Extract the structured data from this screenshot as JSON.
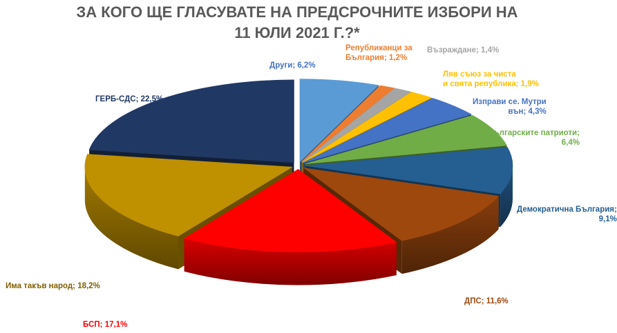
{
  "title_lines": [
    "ЗА КОГО ЩЕ ГЛАСУВАТЕ НА ПРЕДСРОЧНИТЕ ИЗБОРИ НА",
    "11 ЮЛИ 2021 Г.?*"
  ],
  "chart_data": {
    "type": "pie",
    "title": "ЗА КОГО ЩЕ ГЛАСУВАТЕ НА ПРЕДСРОЧНИТЕ ИЗБОРИ НА 11 ЮЛИ 2021 Г.?*",
    "three_d": true,
    "slices": [
      {
        "label": "Други",
        "value": 6.2,
        "display": "6,2%",
        "color": "#5b9bd5",
        "label_color": "#4472c4"
      },
      {
        "label": "Републиканци за България",
        "value": 1.2,
        "display": "1,2%",
        "color": "#ed7d31",
        "label_color": "#ed7d31"
      },
      {
        "label": "Възраждане",
        "value": 1.4,
        "display": "1,4%",
        "color": "#a5a5a5",
        "label_color": "#a5a5a5"
      },
      {
        "label": "Ляв съюз за чиста и свята република",
        "value": 1.9,
        "display": "1,9%",
        "color": "#ffc000",
        "label_color": "#ffc000"
      },
      {
        "label": "Изправи се. Мутри вън",
        "value": 4.3,
        "display": "4,3%",
        "color": "#4472c4",
        "label_color": "#4472c4"
      },
      {
        "label": "Българските патриоти",
        "value": 6.4,
        "display": "6,4%",
        "color": "#70ad47",
        "label_color": "#70ad47"
      },
      {
        "label": "Демократична България",
        "value": 9.1,
        "display": "9,1%",
        "color": "#255e91",
        "label_color": "#255e91"
      },
      {
        "label": "ДПС",
        "value": 11.6,
        "display": "11,6%",
        "color": "#9e480e",
        "label_color": "#9e480e"
      },
      {
        "label": "БСП",
        "value": 17.1,
        "display": "17,1%",
        "color": "#ff0000",
        "label_color": "#ff0000"
      },
      {
        "label": "Има такъв народ",
        "value": 18.2,
        "display": "18,2%",
        "color": "#bf9000",
        "label_color": "#7f6000"
      },
      {
        "label": "ГЕРБ-СДС",
        "value": 22.5,
        "display": "22,5%",
        "color": "#203864",
        "label_color": "#203864"
      }
    ]
  }
}
